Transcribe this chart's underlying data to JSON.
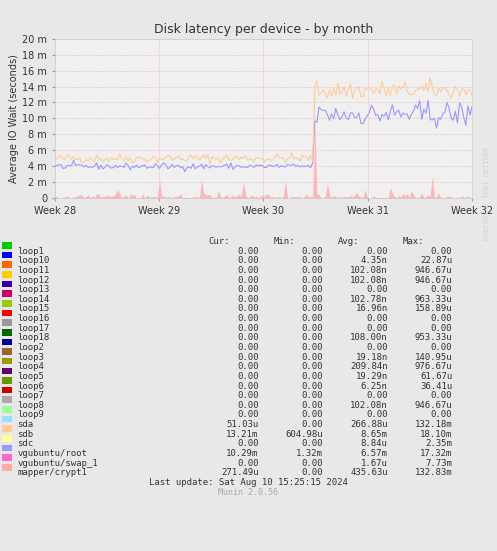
{
  "title": "Disk latency per device - by month",
  "ylabel": "Average IO Wait (seconds)",
  "xlabel_ticks": [
    "Week 28",
    "Week 29",
    "Week 30",
    "Week 31",
    "Week 32"
  ],
  "ytick_labels": [
    "0",
    "2 m",
    "4 m",
    "6 m",
    "8 m",
    "10 m",
    "12 m",
    "14 m",
    "16 m",
    "18 m",
    "20 m"
  ],
  "ytick_values": [
    0,
    0.002,
    0.004,
    0.006,
    0.008,
    0.01,
    0.012,
    0.014,
    0.016,
    0.018,
    0.02
  ],
  "ymax": 0.02,
  "bg_color": "#e8e8e8",
  "plot_bg_color": "#f0f0f0",
  "grid_color": "#ff9999",
  "watermark": "RRDTOOL / TOBI OETIKER",
  "legend": [
    {
      "label": "loop1",
      "color": "#00cc00"
    },
    {
      "label": "loop10",
      "color": "#0000ff"
    },
    {
      "label": "loop11",
      "color": "#ff6600"
    },
    {
      "label": "loop12",
      "color": "#ffcc00"
    },
    {
      "label": "loop13",
      "color": "#330099"
    },
    {
      "label": "loop14",
      "color": "#cc0066"
    },
    {
      "label": "loop15",
      "color": "#99cc00"
    },
    {
      "label": "loop16",
      "color": "#ff0000"
    },
    {
      "label": "loop17",
      "color": "#999999"
    },
    {
      "label": "loop18",
      "color": "#006600"
    },
    {
      "label": "loop2",
      "color": "#000099"
    },
    {
      "label": "loop3",
      "color": "#996633"
    },
    {
      "label": "loop4",
      "color": "#999900"
    },
    {
      "label": "loop5",
      "color": "#660066"
    },
    {
      "label": "loop6",
      "color": "#669900"
    },
    {
      "label": "loop7",
      "color": "#cc0000"
    },
    {
      "label": "loop8",
      "color": "#aaaaaa"
    },
    {
      "label": "loop9",
      "color": "#99ff99"
    },
    {
      "label": "sda",
      "color": "#99ddff"
    },
    {
      "label": "sdb",
      "color": "#ffcc99"
    },
    {
      "label": "sdc",
      "color": "#ffff99"
    },
    {
      "label": "vgubuntu/root",
      "color": "#9999ff"
    },
    {
      "label": "vgubuntu/swap_1",
      "color": "#ff66cc"
    },
    {
      "label": "mapper/crypt1",
      "color": "#ffaaaa"
    }
  ],
  "table_headers": [
    "Cur:",
    "Min:",
    "Avg:",
    "Max:"
  ],
  "table_data": [
    [
      "loop1",
      "0.00",
      "0.00",
      "0.00",
      "0.00"
    ],
    [
      "loop10",
      "0.00",
      "0.00",
      "4.35n",
      "22.87u"
    ],
    [
      "loop11",
      "0.00",
      "0.00",
      "102.08n",
      "946.67u"
    ],
    [
      "loop12",
      "0.00",
      "0.00",
      "102.08n",
      "946.67u"
    ],
    [
      "loop13",
      "0.00",
      "0.00",
      "0.00",
      "0.00"
    ],
    [
      "loop14",
      "0.00",
      "0.00",
      "102.78n",
      "963.33u"
    ],
    [
      "loop15",
      "0.00",
      "0.00",
      "16.96n",
      "158.89u"
    ],
    [
      "loop16",
      "0.00",
      "0.00",
      "0.00",
      "0.00"
    ],
    [
      "loop17",
      "0.00",
      "0.00",
      "0.00",
      "0.00"
    ],
    [
      "loop18",
      "0.00",
      "0.00",
      "108.00n",
      "953.33u"
    ],
    [
      "loop2",
      "0.00",
      "0.00",
      "0.00",
      "0.00"
    ],
    [
      "loop3",
      "0.00",
      "0.00",
      "19.18n",
      "140.95u"
    ],
    [
      "loop4",
      "0.00",
      "0.00",
      "209.84n",
      "976.67u"
    ],
    [
      "loop5",
      "0.00",
      "0.00",
      "19.29n",
      "61.67u"
    ],
    [
      "loop6",
      "0.00",
      "0.00",
      "6.25n",
      "36.41u"
    ],
    [
      "loop7",
      "0.00",
      "0.00",
      "0.00",
      "0.00"
    ],
    [
      "loop8",
      "0.00",
      "0.00",
      "102.08n",
      "946.67u"
    ],
    [
      "loop9",
      "0.00",
      "0.00",
      "0.00",
      "0.00"
    ],
    [
      "sda",
      "51.03u",
      "0.00",
      "266.88u",
      "132.18m"
    ],
    [
      "sdb",
      "13.21m",
      "604.98u",
      "8.65m",
      "18.10m"
    ],
    [
      "sdc",
      "0.00",
      "0.00",
      "8.84u",
      "2.35m"
    ],
    [
      "vgubuntu/root",
      "10.29m",
      "1.32m",
      "6.57m",
      "17.32m"
    ],
    [
      "vgubuntu/swap_1",
      "0.00",
      "0.00",
      "1.67u",
      "7.73m"
    ],
    [
      "mapper/crypt1",
      "271.49u",
      "0.00",
      "435.63u",
      "132.83m"
    ]
  ],
  "last_update": "Last update: Sat Aug 10 15:25:15 2024",
  "munin_version": "Munin 2.0.56"
}
